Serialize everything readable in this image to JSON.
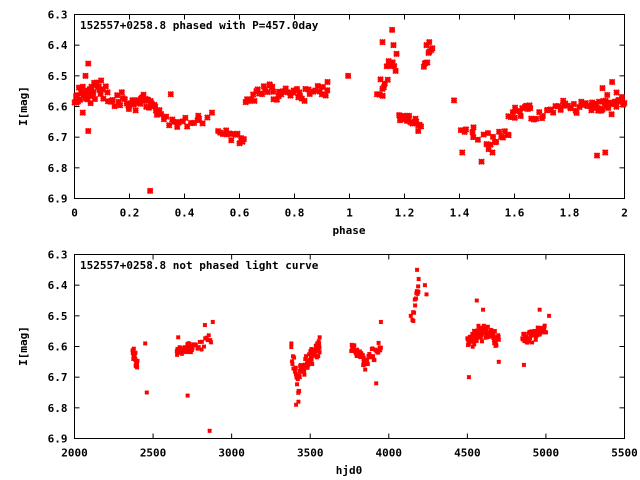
{
  "chart_data": [
    {
      "type": "scatter",
      "title": "152557+0258.8 phased with P=457.0day",
      "xlabel": "phase",
      "ylabel": "I[mag]",
      "xlim": [
        0,
        2
      ],
      "ylim": [
        6.3,
        6.9
      ],
      "y_inverted": true,
      "grid": false,
      "color": "#ff0000",
      "xticks": [
        "0",
        "0.2",
        "0.4",
        "0.6",
        "0.8",
        "1",
        "1.2",
        "1.4",
        "1.6",
        "1.8",
        "2"
      ],
      "yticks": [
        "6.3",
        "6.4",
        "6.5",
        "6.6",
        "6.7",
        "6.8",
        "6.9"
      ],
      "segments": [
        {
          "x0": 0.0,
          "x1": 0.1,
          "n": 40,
          "y0": 6.57,
          "y1": 6.54,
          "s": 0.045
        },
        {
          "x0": 0.1,
          "x1": 0.2,
          "n": 18,
          "y0": 6.55,
          "y1": 6.6,
          "s": 0.04
        },
        {
          "x0": 0.2,
          "x1": 0.3,
          "n": 30,
          "y0": 6.58,
          "y1": 6.6,
          "s": 0.035
        },
        {
          "x0": 0.3,
          "x1": 0.38,
          "n": 10,
          "y0": 6.62,
          "y1": 6.66,
          "s": 0.03
        },
        {
          "x0": 0.38,
          "x1": 0.48,
          "n": 10,
          "y0": 6.66,
          "y1": 6.64,
          "s": 0.025
        },
        {
          "x0": 0.52,
          "x1": 0.62,
          "n": 12,
          "y0": 6.68,
          "y1": 6.7,
          "s": 0.02
        },
        {
          "x0": 0.62,
          "x1": 0.72,
          "n": 16,
          "y0": 6.58,
          "y1": 6.53,
          "s": 0.035
        },
        {
          "x0": 0.72,
          "x1": 0.82,
          "n": 16,
          "y0": 6.56,
          "y1": 6.56,
          "s": 0.03
        },
        {
          "x0": 0.82,
          "x1": 0.92,
          "n": 14,
          "y0": 6.57,
          "y1": 6.55,
          "s": 0.03
        },
        {
          "x0": 1.11,
          "x1": 1.17,
          "n": 16,
          "y0": 6.55,
          "y1": 6.44,
          "s": 0.05
        },
        {
          "x0": 1.18,
          "x1": 1.26,
          "n": 16,
          "y0": 6.63,
          "y1": 6.66,
          "s": 0.025
        },
        {
          "x0": 1.27,
          "x1": 1.3,
          "n": 8,
          "y0": 6.47,
          "y1": 6.41,
          "s": 0.03
        },
        {
          "x0": 1.4,
          "x1": 1.5,
          "n": 8,
          "y0": 6.68,
          "y1": 6.7,
          "s": 0.04
        },
        {
          "x0": 1.5,
          "x1": 1.58,
          "n": 12,
          "y0": 6.72,
          "y1": 6.68,
          "s": 0.03
        },
        {
          "x0": 1.58,
          "x1": 1.66,
          "n": 14,
          "y0": 6.64,
          "y1": 6.6,
          "s": 0.03
        },
        {
          "x0": 1.66,
          "x1": 1.78,
          "n": 14,
          "y0": 6.64,
          "y1": 6.6,
          "s": 0.025
        },
        {
          "x0": 1.78,
          "x1": 1.88,
          "n": 16,
          "y0": 6.6,
          "y1": 6.6,
          "s": 0.035
        },
        {
          "x0": 1.88,
          "x1": 2.0,
          "n": 32,
          "y0": 6.6,
          "y1": 6.58,
          "s": 0.04
        }
      ],
      "points": [
        [
          0.275,
          6.875
        ],
        [
          0.04,
          6.5
        ],
        [
          0.05,
          6.46
        ],
        [
          1.155,
          6.35
        ],
        [
          1.16,
          6.4
        ],
        [
          1.12,
          6.39
        ],
        [
          1.1,
          6.56
        ],
        [
          0.995,
          6.5
        ],
        [
          0.92,
          6.52
        ],
        [
          1.52,
          6.75
        ],
        [
          1.48,
          6.78
        ],
        [
          1.41,
          6.75
        ],
        [
          1.45,
          6.7
        ],
        [
          1.38,
          6.58
        ],
        [
          1.9,
          6.76
        ],
        [
          1.93,
          6.75
        ],
        [
          1.955,
          6.52
        ],
        [
          1.92,
          6.54
        ],
        [
          0.57,
          6.71
        ],
        [
          0.6,
          6.72
        ],
        [
          1.29,
          6.39
        ],
        [
          1.28,
          6.4
        ],
        [
          1.21,
          6.63
        ],
        [
          1.25,
          6.68
        ],
        [
          1.24,
          6.64
        ],
        [
          0.05,
          6.68
        ],
        [
          0.03,
          6.62
        ],
        [
          0.35,
          6.56
        ],
        [
          0.5,
          6.62
        ],
        [
          0.45,
          6.63
        ]
      ]
    },
    {
      "type": "scatter",
      "title": "152557+0258.8 not phased light curve",
      "xlabel": "hjd0",
      "ylabel": "I[mag]",
      "xlim": [
        2000,
        5500
      ],
      "ylim": [
        6.3,
        6.9
      ],
      "y_inverted": true,
      "grid": false,
      "color": "#ff0000",
      "xticks": [
        "2000",
        "2500",
        "3000",
        "3500",
        "4000",
        "4500",
        "5000",
        "5500"
      ],
      "yticks": [
        "6.3",
        "6.4",
        "6.5",
        "6.6",
        "6.7",
        "6.8",
        "6.9"
      ],
      "segments": [
        {
          "x0": 2370,
          "x1": 2400,
          "n": 22,
          "y0": 6.62,
          "y1": 6.66,
          "s": 0.025
        },
        {
          "x0": 2650,
          "x1": 2750,
          "n": 40,
          "y0": 6.62,
          "y1": 6.6,
          "s": 0.025
        },
        {
          "x0": 2750,
          "x1": 2870,
          "n": 16,
          "y0": 6.6,
          "y1": 6.58,
          "s": 0.035
        },
        {
          "x0": 3380,
          "x1": 3430,
          "n": 16,
          "y0": 6.63,
          "y1": 6.74,
          "s": 0.04
        },
        {
          "x0": 3430,
          "x1": 3480,
          "n": 24,
          "y0": 6.69,
          "y1": 6.65,
          "s": 0.04
        },
        {
          "x0": 3480,
          "x1": 3560,
          "n": 40,
          "y0": 6.65,
          "y1": 6.6,
          "s": 0.035
        },
        {
          "x0": 3760,
          "x1": 3840,
          "n": 26,
          "y0": 6.6,
          "y1": 6.64,
          "s": 0.03
        },
        {
          "x0": 3840,
          "x1": 3950,
          "n": 26,
          "y0": 6.65,
          "y1": 6.6,
          "s": 0.035
        },
        {
          "x0": 4150,
          "x1": 4190,
          "n": 12,
          "y0": 6.5,
          "y1": 6.4,
          "s": 0.04
        },
        {
          "x0": 4500,
          "x1": 4600,
          "n": 60,
          "y0": 6.58,
          "y1": 6.55,
          "s": 0.035
        },
        {
          "x0": 4600,
          "x1": 4700,
          "n": 50,
          "y0": 6.55,
          "y1": 6.58,
          "s": 0.035
        },
        {
          "x0": 4850,
          "x1": 5000,
          "n": 44,
          "y0": 6.58,
          "y1": 6.54,
          "s": 0.03
        }
      ],
      "points": [
        [
          2450,
          6.59
        ],
        [
          2460,
          6.75
        ],
        [
          2720,
          6.76
        ],
        [
          2830,
          6.53
        ],
        [
          2860,
          6.875
        ],
        [
          2880,
          6.52
        ],
        [
          3410,
          6.79
        ],
        [
          3425,
          6.78
        ],
        [
          4180,
          6.35
        ],
        [
          4190,
          6.38
        ],
        [
          4230,
          6.4
        ],
        [
          4240,
          6.43
        ],
        [
          4140,
          6.5
        ],
        [
          3920,
          6.72
        ],
        [
          3950,
          6.52
        ],
        [
          4510,
          6.7
        ],
        [
          4560,
          6.45
        ],
        [
          4600,
          6.48
        ],
        [
          4700,
          6.65
        ],
        [
          4860,
          6.66
        ],
        [
          4960,
          6.48
        ],
        [
          5020,
          6.5
        ],
        [
          3560,
          6.57
        ],
        [
          3380,
          6.59
        ],
        [
          2660,
          6.57
        ]
      ]
    }
  ]
}
